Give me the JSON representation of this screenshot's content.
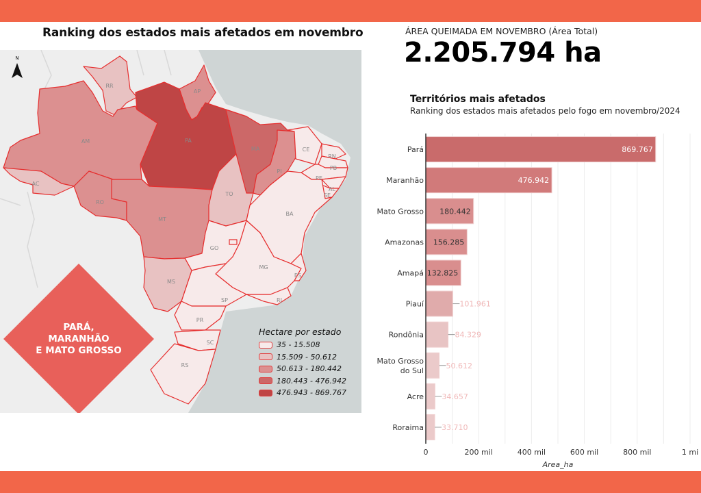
{
  "header": {
    "map_title": "Ranking dos estados mais afetados em novembro",
    "kpi_label": "ÁREA QUEIMADA EM NOVEMBRO (Área Total)",
    "kpi_value": "2.205.794 ha"
  },
  "colors": {
    "brand": "#f26649",
    "ocean": "#cfd5d5",
    "land": "#eeeeee",
    "border": "#e62e2e",
    "diamond": "#e8605a"
  },
  "map": {
    "north_label": "N",
    "highlight_text": [
      "PARÁ,",
      "MARANHÃO",
      "E MATO GROSSO"
    ],
    "states": [
      {
        "abbr": "RR",
        "class": 1
      },
      {
        "abbr": "AP",
        "class": 2
      },
      {
        "abbr": "AM",
        "class": 2
      },
      {
        "abbr": "AC",
        "class": 1
      },
      {
        "abbr": "PA",
        "class": 4
      },
      {
        "abbr": "RO",
        "class": 2
      },
      {
        "abbr": "MT",
        "class": 2
      },
      {
        "abbr": "MA",
        "class": 3
      },
      {
        "abbr": "TO",
        "class": 1
      },
      {
        "abbr": "PI",
        "class": 2
      },
      {
        "abbr": "CE",
        "class": 0
      },
      {
        "abbr": "RN",
        "class": 0
      },
      {
        "abbr": "PB",
        "class": 0
      },
      {
        "abbr": "PE",
        "class": 0
      },
      {
        "abbr": "AL",
        "class": 0
      },
      {
        "abbr": "SE",
        "class": 0
      },
      {
        "abbr": "BA",
        "class": 0
      },
      {
        "abbr": "GO",
        "class": 0
      },
      {
        "abbr": "DF",
        "class": 0
      },
      {
        "abbr": "MG",
        "class": 0
      },
      {
        "abbr": "ES",
        "class": 0
      },
      {
        "abbr": "SP",
        "class": 0
      },
      {
        "abbr": "RJ",
        "class": 0
      },
      {
        "abbr": "MS",
        "class": 1
      },
      {
        "abbr": "PR",
        "class": 0
      },
      {
        "abbr": "SC",
        "class": 0
      },
      {
        "abbr": "RS",
        "class": 0
      }
    ],
    "legend": {
      "title": "Hectare por estado",
      "items": [
        {
          "label": "35 - 15.508",
          "color": "#f7eaea"
        },
        {
          "label": "15.509 - 50.612",
          "color": "#e8c2c2"
        },
        {
          "label": "50.613 - 180.442",
          "color": "#dc9090"
        },
        {
          "label": "180.443 - 476.942",
          "color": "#cc6868"
        },
        {
          "label": "476.943 - 869.767",
          "color": "#bf4545"
        }
      ]
    }
  },
  "chart_data": {
    "type": "bar",
    "orientation": "horizontal",
    "title": "Territórios mais afetados",
    "subtitle": "Ranking dos estados mais afetados pelo fogo em novembro/2024",
    "categories": [
      "Pará",
      "Maranhão",
      "Mato Grosso",
      "Amazonas",
      "Amapá",
      "Piauí",
      "Rondônia",
      "Mato Grosso do Sul",
      "Acre",
      "Roraima"
    ],
    "values": [
      869767,
      476942,
      180442,
      156285,
      132825,
      101961,
      84329,
      50612,
      34657,
      33710
    ],
    "value_labels": [
      "869.767",
      "476.942",
      "180.442",
      "156.285",
      "132.825",
      "101.961",
      "84.329",
      "50.612",
      "34.657",
      "33.710"
    ],
    "bar_colors": [
      "#c96b6b",
      "#d17a7a",
      "#d98e8e",
      "#d98e8e",
      "#d98e8e",
      "#e0abab",
      "#e8c4c4",
      "#ebcaca",
      "#ebcaca",
      "#ebcaca"
    ],
    "xlabel": "Area_ha",
    "xlim": [
      0,
      1000000
    ],
    "xticks": [
      {
        "v": 0,
        "label": "0"
      },
      {
        "v": 200000,
        "label": "200 mil"
      },
      {
        "v": 400000,
        "label": "400 mil"
      },
      {
        "v": 600000,
        "label": "600 mil"
      },
      {
        "v": 800000,
        "label": "800 mil"
      },
      {
        "v": 1000000,
        "label": "1 mi"
      }
    ],
    "grid": true
  }
}
